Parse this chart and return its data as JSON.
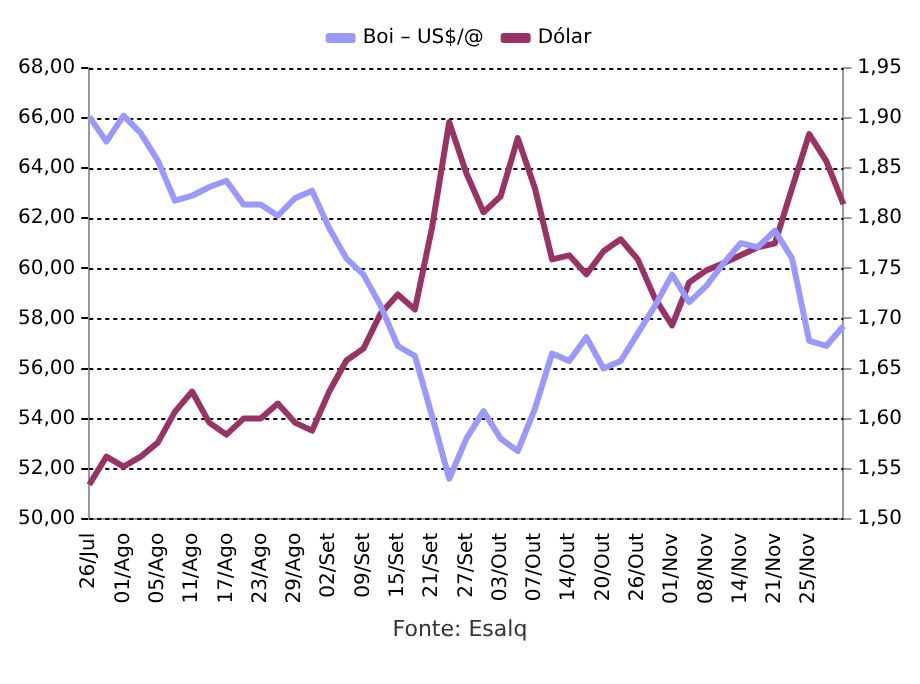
{
  "chart_data": {
    "type": "line",
    "categories": [
      "26/Jul",
      null,
      "01/Ago",
      null,
      "05/Ago",
      null,
      "11/Ago",
      null,
      "17/Ago",
      null,
      "23/Ago",
      null,
      "29/Ago",
      null,
      "02/Set",
      null,
      "09/Set",
      null,
      "15/Set",
      null,
      "21/Set",
      null,
      "27/Set",
      null,
      "03/Out",
      null,
      "07/Out",
      null,
      "14/Out",
      null,
      "20/Out",
      null,
      "26/Out",
      null,
      "01/Nov",
      null,
      "08/Nov",
      null,
      "14/Nov",
      null,
      "21/Nov",
      null,
      "25/Nov",
      null,
      null
    ],
    "series": [
      {
        "name": "Boi – US$/@",
        "color": "#9999ff",
        "axis": "y",
        "values": [
          66.06,
          65.06,
          66.1,
          65.4,
          64.3,
          62.7,
          62.9,
          63.25,
          63.5,
          62.55,
          62.55,
          62.1,
          62.8,
          63.1,
          61.6,
          60.4,
          59.75,
          58.5,
          56.9,
          56.5,
          54.1,
          51.6,
          53.2,
          54.3,
          53.2,
          52.7,
          54.4,
          56.6,
          56.3,
          57.25,
          56.0,
          56.3,
          57.4,
          58.5,
          59.75,
          58.65,
          59.3,
          60.2,
          61.0,
          60.85,
          61.5,
          60.4,
          57.1,
          56.9,
          57.7
        ]
      },
      {
        "name": "Dólar",
        "color": "#993366",
        "axis": "y2",
        "values": [
          1.534,
          1.562,
          1.552,
          1.562,
          1.576,
          1.607,
          1.627,
          1.596,
          1.584,
          1.6,
          1.6,
          1.615,
          1.596,
          1.588,
          1.627,
          1.658,
          1.67,
          1.705,
          1.724,
          1.709,
          1.791,
          1.896,
          1.845,
          1.806,
          1.822,
          1.88,
          1.83,
          1.759,
          1.763,
          1.744,
          1.767,
          1.779,
          1.759,
          1.72,
          1.693,
          1.736,
          1.748,
          1.755,
          1.763,
          1.771,
          1.775,
          1.83,
          1.884,
          1.857,
          1.814
        ]
      }
    ],
    "ylim": [
      50,
      68
    ],
    "yticks": [
      {
        "value": 50,
        "label": "50,00"
      },
      {
        "value": 52,
        "label": "52,00"
      },
      {
        "value": 54,
        "label": "54,00"
      },
      {
        "value": 56,
        "label": "56,00"
      },
      {
        "value": 58,
        "label": "58,00"
      },
      {
        "value": 60,
        "label": "60,00"
      },
      {
        "value": 62,
        "label": "62,00"
      },
      {
        "value": 64,
        "label": "64,00"
      },
      {
        "value": 66,
        "label": "66,00"
      },
      {
        "value": 68,
        "label": "68,00"
      }
    ],
    "y2lim": [
      1.5,
      1.95
    ],
    "y2ticks": [
      {
        "value": 1.5,
        "label": "1,50"
      },
      {
        "value": 1.55,
        "label": "1,55"
      },
      {
        "value": 1.6,
        "label": "1,60"
      },
      {
        "value": 1.65,
        "label": "1,65"
      },
      {
        "value": 1.7,
        "label": "1,70"
      },
      {
        "value": 1.75,
        "label": "1,75"
      },
      {
        "value": 1.8,
        "label": "1,80"
      },
      {
        "value": 1.85,
        "label": "1,85"
      },
      {
        "value": 1.9,
        "label": "1,90"
      },
      {
        "value": 1.95,
        "label": "1,95"
      }
    ],
    "grid": "y",
    "legend": "top",
    "marker": "none",
    "line_style": "solid",
    "annotations": [
      "Fonte: Esalq"
    ]
  }
}
